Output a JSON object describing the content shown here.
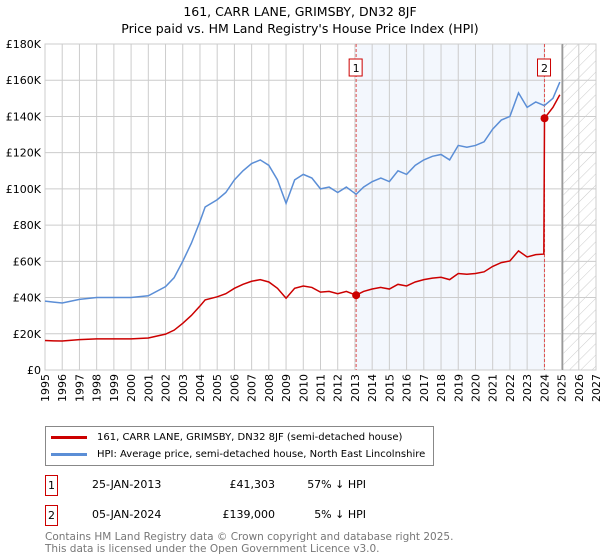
{
  "title": "161, CARR LANE, GRIMSBY, DN32 8JF",
  "subtitle": "Price paid vs. HM Land Registry's House Price Index (HPI)",
  "chart_data": {
    "type": "line",
    "xlim": [
      1995,
      2027
    ],
    "ylim": [
      0,
      180000
    ],
    "x_ticks": [
      "1995",
      "1996",
      "1997",
      "1998",
      "1999",
      "2000",
      "2001",
      "2002",
      "2003",
      "2004",
      "2005",
      "2006",
      "2007",
      "2008",
      "2009",
      "2010",
      "2011",
      "2012",
      "2013",
      "2014",
      "2015",
      "2016",
      "2017",
      "2018",
      "2019",
      "2020",
      "2021",
      "2022",
      "2023",
      "2024",
      "2025",
      "2026",
      "2027"
    ],
    "y_ticks": [
      {
        "v": 0,
        "label": "£0"
      },
      {
        "v": 20000,
        "label": "£20K"
      },
      {
        "v": 40000,
        "label": "£40K"
      },
      {
        "v": 60000,
        "label": "£60K"
      },
      {
        "v": 80000,
        "label": "£80K"
      },
      {
        "v": 100000,
        "label": "£100K"
      },
      {
        "v": 120000,
        "label": "£120K"
      },
      {
        "v": 140000,
        "label": "£140K"
      },
      {
        "v": 160000,
        "label": "£160K"
      },
      {
        "v": 180000,
        "label": "£180K"
      }
    ],
    "grid": true,
    "shaded_range": [
      2013.07,
      2024.01
    ],
    "forecast_hatch_from": 2025,
    "series": [
      {
        "name": "161, CARR LANE, GRIMSBY, DN32 8JF (semi-detached house)",
        "color": "#cc0000",
        "x": [
          1995,
          1995.5,
          1996,
          1997,
          1998,
          1999,
          2000,
          2001,
          2002,
          2002.5,
          2003,
          2003.5,
          2004,
          2004.3,
          2005,
          2005.5,
          2006,
          2006.5,
          2007,
          2007.5,
          2008,
          2008.5,
          2009,
          2009.5,
          2010,
          2010.5,
          2011,
          2011.5,
          2012,
          2012.5,
          2013.07,
          2013.5,
          2014,
          2014.5,
          2015,
          2015.5,
          2016,
          2016.5,
          2017,
          2017.5,
          2018,
          2018.5,
          2019,
          2019.5,
          2020,
          2020.5,
          2021,
          2021.5,
          2022,
          2022.5,
          2023,
          2023.5,
          2023.97,
          2024.01,
          2024.5,
          2024.9
        ],
        "y": [
          16300,
          16100,
          16000,
          16800,
          17200,
          17200,
          17200,
          17700,
          19800,
          22000,
          25800,
          30100,
          35300,
          38700,
          40400,
          42100,
          45100,
          47300,
          49000,
          49900,
          48600,
          45100,
          39600,
          45100,
          46400,
          45600,
          43000,
          43400,
          42100,
          43400,
          41303,
          43400,
          44700,
          45600,
          44700,
          47300,
          46400,
          48600,
          49900,
          50700,
          51200,
          49900,
          53300,
          52900,
          53300,
          54200,
          57200,
          59300,
          60200,
          65800,
          62400,
          63700,
          64000,
          139000,
          145000,
          152000
        ]
      },
      {
        "name": "HPI: Average price, semi-detached house, North East Lincolnshire",
        "color": "#5b8ed6",
        "x": [
          1995,
          1995.5,
          1996,
          1997,
          1998,
          1999,
          2000,
          2001,
          2002,
          2002.5,
          2003,
          2003.5,
          2004,
          2004.3,
          2005,
          2005.5,
          2006,
          2006.5,
          2007,
          2007.5,
          2008,
          2008.5,
          2009,
          2009.5,
          2010,
          2010.5,
          2011,
          2011.5,
          2012,
          2012.5,
          2013.07,
          2013.5,
          2014,
          2014.5,
          2015,
          2015.5,
          2016,
          2016.5,
          2017,
          2017.5,
          2018,
          2018.5,
          2019,
          2019.5,
          2020,
          2020.5,
          2021,
          2021.5,
          2022,
          2022.5,
          2023,
          2023.5,
          2024,
          2024.5,
          2024.9
        ],
        "y": [
          38000,
          37500,
          37000,
          39000,
          40000,
          40000,
          40000,
          41000,
          46000,
          51000,
          60000,
          70000,
          82000,
          90000,
          94000,
          98000,
          105000,
          110000,
          114000,
          116000,
          113000,
          105000,
          92000,
          105000,
          108000,
          106000,
          100000,
          101000,
          98000,
          101000,
          97000,
          101000,
          104000,
          106000,
          104000,
          110000,
          108000,
          113000,
          116000,
          118000,
          119000,
          116000,
          124000,
          123000,
          124000,
          126000,
          133000,
          138000,
          140000,
          153000,
          145000,
          148000,
          146000,
          150000,
          159000
        ]
      }
    ],
    "annotations": [
      {
        "label": "1",
        "x": 2013.07,
        "y": 41303
      },
      {
        "label": "2",
        "x": 2024.01,
        "y": 139000
      }
    ]
  },
  "legend": {
    "property": "161, CARR LANE, GRIMSBY, DN32 8JF (semi-detached house)",
    "hpi": "HPI: Average price, semi-detached house, North East Lincolnshire"
  },
  "transactions": [
    {
      "num": "1",
      "date": "25-JAN-2013",
      "price": "£41,303",
      "hpi": "57% ↓ HPI"
    },
    {
      "num": "2",
      "date": "05-JAN-2024",
      "price": "£139,000",
      "hpi": "5% ↓ HPI"
    }
  ],
  "footer": [
    "Contains HM Land Registry data © Crown copyright and database right 2025.",
    "This data is licensed under the Open Government Licence v3.0."
  ]
}
